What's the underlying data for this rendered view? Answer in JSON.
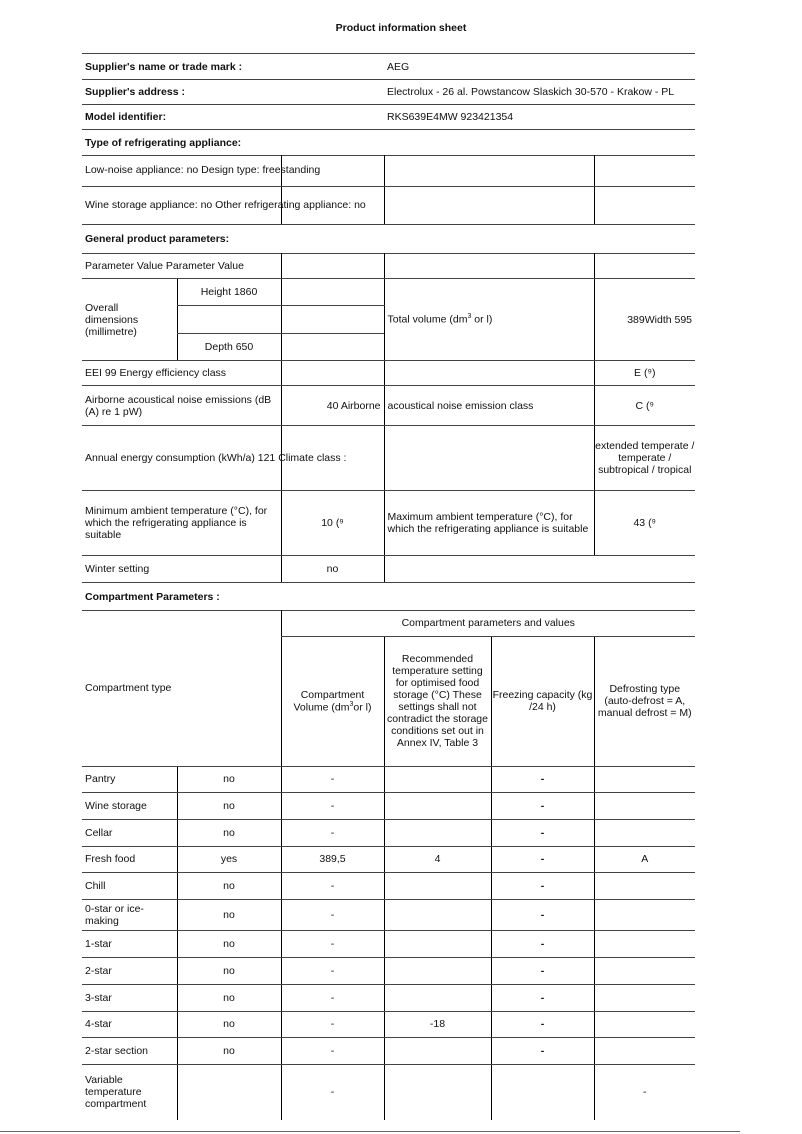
{
  "title": "Product information sheet",
  "supplier": {
    "name_label": "Supplier's name or trade mark :",
    "name": "AEG",
    "address_label": "Supplier's address :",
    "address": "Electrolux - 26 al. Powstancow Slaskich 30-570 - Krakow - PL",
    "model_label": "Model identifier:",
    "model": "RKS639E4MW 923421354"
  },
  "type": {
    "heading": "Type of refrigerating appliance:",
    "row1": "Low-noise appliance: no Design type: freestanding",
    "row2": "Wine storage appliance: no Other refrigerating appliance: no"
  },
  "general": {
    "heading": "General product parameters:",
    "header": "Parameter Value Parameter Value",
    "dims_label": "Overall dimensions (millimetre)",
    "height": "Height 1860",
    "depth": "Depth 650",
    "total_volume_label": "Total volume (dm",
    "total_volume_unit": " or l)",
    "total_volume_value": "389Width 595",
    "eei": "EEI 99 Energy efficiency class",
    "eei_value": "E (⁹)",
    "noise_label": "Airborne acoustical noise emissions (dB (A) re 1 pW)",
    "noise_value": "40 Airborne",
    "noise_class_label": "acoustical noise emission class",
    "noise_class_value": "C (⁹",
    "annual": "Annual energy consumption (kWh/a) 121 Climate class :",
    "climate_value": "extended temperate / temperate / subtropical / tropical",
    "min_label": "Minimum ambient temperature (°C), for which the refrigerating appliance is suitable",
    "min_value": "10 (⁹",
    "max_label": "Maximum ambient temperature (°C), for which the refrigerating appliance is suitable",
    "max_value": "43 (⁹",
    "winter_label": "Winter setting",
    "winter_value": "no"
  },
  "compartments": {
    "heading": "Compartment Parameters :",
    "type_header": "Compartment type",
    "group_header": "Compartment parameters and values",
    "col_volume": "Compartment Volume (dm",
    "col_volume_unit": "or l)",
    "col_temp": "Recommended temperature setting for optimised food storage (°C) These settings shall not contradict the storage conditions set out in Annex IV, Table 3",
    "col_freezing": "Freezing capacity (kg /24 h)",
    "col_defrost": "Defrosting type (auto-defrost = A, manual defrost = M)",
    "rows": [
      {
        "name": "Pantry",
        "present": "no",
        "volume": "-",
        "temp": "",
        "freezing": "-",
        "defrost": ""
      },
      {
        "name": "Wine storage",
        "present": "no",
        "volume": "-",
        "temp": "",
        "freezing": "-",
        "defrost": ""
      },
      {
        "name": "Cellar",
        "present": "no",
        "volume": "-",
        "temp": "",
        "freezing": "-",
        "defrost": ""
      },
      {
        "name": "Fresh food",
        "present": "yes",
        "volume": "389,5",
        "temp": "4",
        "freezing": "-",
        "defrost": "A"
      },
      {
        "name": "Chill",
        "present": "no",
        "volume": "-",
        "temp": "",
        "freezing": "-",
        "defrost": ""
      },
      {
        "name": "0-star or ice-making",
        "present": "no",
        "volume": "-",
        "temp": "",
        "freezing": "-",
        "defrost": ""
      },
      {
        "name": "1-star",
        "present": "no",
        "volume": "-",
        "temp": "",
        "freezing": "-",
        "defrost": ""
      },
      {
        "name": "2-star",
        "present": "no",
        "volume": "-",
        "temp": "",
        "freezing": "-",
        "defrost": ""
      },
      {
        "name": "3-star",
        "present": "no",
        "volume": "-",
        "temp": "",
        "freezing": "-",
        "defrost": ""
      },
      {
        "name": "4-star",
        "present": "no",
        "volume": "-",
        "temp": "-18",
        "freezing": "-",
        "defrost": ""
      },
      {
        "name": "2-star section",
        "present": "no",
        "volume": "-",
        "temp": "",
        "freezing": "-",
        "defrost": ""
      },
      {
        "name": "Variable temperature compartment",
        "present": "",
        "volume": "-",
        "temp": "",
        "freezing": "",
        "defrost": "-"
      }
    ]
  }
}
